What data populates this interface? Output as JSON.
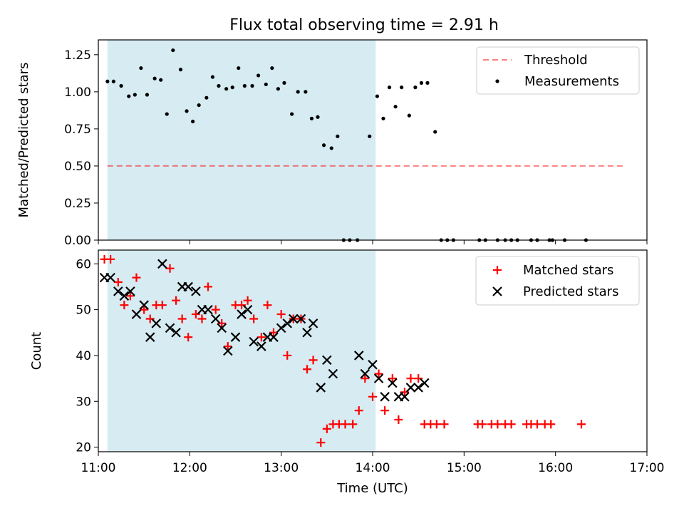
{
  "title": "Flux total observing time = 2.91 h",
  "chart_data": [
    {
      "type": "scatter",
      "ylabel": "Matched/Predicted stars",
      "xlabel": "",
      "xlim": [
        "11:00",
        "17:00"
      ],
      "ylim": [
        0,
        1.35
      ],
      "yticks": [
        "0.00",
        "0.25",
        "0.50",
        "0.75",
        "1.00",
        "1.25"
      ],
      "highlight_span": [
        "11:06",
        "14:02"
      ],
      "threshold": 0.5,
      "legend_position": "top-right",
      "legend": [
        "Threshold",
        "Measurements"
      ],
      "series": [
        {
          "name": "Measurements",
          "color": "#000000",
          "points": [
            [
              "11:06",
              1.07
            ],
            [
              "11:10",
              1.07
            ],
            [
              "11:15",
              1.04
            ],
            [
              "11:20",
              0.97
            ],
            [
              "11:24",
              0.98
            ],
            [
              "11:28",
              1.16
            ],
            [
              "11:32",
              0.98
            ],
            [
              "11:37",
              1.09
            ],
            [
              "11:41",
              1.08
            ],
            [
              "11:45",
              0.85
            ],
            [
              "11:49",
              1.28
            ],
            [
              "11:54",
              1.15
            ],
            [
              "11:58",
              0.87
            ],
            [
              "12:02",
              0.8
            ],
            [
              "12:06",
              0.91
            ],
            [
              "12:11",
              0.96
            ],
            [
              "12:15",
              1.1
            ],
            [
              "12:19",
              1.04
            ],
            [
              "12:24",
              1.02
            ],
            [
              "12:28",
              1.03
            ],
            [
              "12:32",
              1.16
            ],
            [
              "12:36",
              1.04
            ],
            [
              "12:41",
              1.04
            ],
            [
              "12:45",
              1.11
            ],
            [
              "12:50",
              1.05
            ],
            [
              "12:54",
              1.16
            ],
            [
              "12:58",
              1.02
            ],
            [
              "13:02",
              1.06
            ],
            [
              "13:07",
              0.85
            ],
            [
              "13:11",
              1.0
            ],
            [
              "13:16",
              1.0
            ],
            [
              "13:20",
              0.82
            ],
            [
              "13:24",
              0.83
            ],
            [
              "13:28",
              0.64
            ],
            [
              "13:33",
              0.62
            ],
            [
              "13:37",
              0.7
            ],
            [
              "13:41",
              0.0
            ],
            [
              "13:45",
              0.0
            ],
            [
              "13:50",
              0.0
            ],
            [
              "13:58",
              0.7
            ],
            [
              "14:03",
              0.97
            ],
            [
              "14:07",
              0.82
            ],
            [
              "14:11",
              1.03
            ],
            [
              "14:15",
              0.9
            ],
            [
              "14:19",
              1.03
            ],
            [
              "14:24",
              0.84
            ],
            [
              "14:28",
              1.03
            ],
            [
              "14:32",
              1.06
            ],
            [
              "14:36",
              1.06
            ],
            [
              "14:41",
              0.73
            ],
            [
              "14:45",
              0.0
            ],
            [
              "14:49",
              0.0
            ],
            [
              "14:53",
              0.0
            ],
            [
              "15:10",
              0.0
            ],
            [
              "15:14",
              0.0
            ],
            [
              "15:22",
              0.0
            ],
            [
              "15:27",
              0.0
            ],
            [
              "15:31",
              0.0
            ],
            [
              "15:35",
              0.0
            ],
            [
              "15:44",
              0.0
            ],
            [
              "15:48",
              0.0
            ],
            [
              "15:56",
              0.0
            ],
            [
              "15:58",
              0.0
            ],
            [
              "16:06",
              0.0
            ],
            [
              "16:20",
              0.0
            ]
          ]
        }
      ]
    },
    {
      "type": "scatter",
      "ylabel": "Count",
      "xlabel": "Time (UTC)",
      "xlim": [
        "11:00",
        "17:00"
      ],
      "ylim": [
        19,
        63
      ],
      "yticks": [
        "20",
        "30",
        "40",
        "50",
        "60"
      ],
      "xticks": [
        "11:00",
        "12:00",
        "13:00",
        "14:00",
        "15:00",
        "16:00",
        "17:00"
      ],
      "highlight_span": [
        "11:06",
        "14:02"
      ],
      "legend_position": "top-right",
      "legend": [
        "Matched stars",
        "Predicted stars"
      ],
      "series": [
        {
          "name": "Matched stars",
          "color": "#ff0000",
          "points": [
            [
              "11:04",
              61
            ],
            [
              "11:08",
              61
            ],
            [
              "11:13",
              56
            ],
            [
              "11:17",
              51
            ],
            [
              "11:21",
              53
            ],
            [
              "11:25",
              57
            ],
            [
              "11:30",
              50
            ],
            [
              "11:34",
              48
            ],
            [
              "11:38",
              51
            ],
            [
              "11:42",
              51
            ],
            [
              "11:47",
              59
            ],
            [
              "11:51",
              52
            ],
            [
              "11:55",
              48
            ],
            [
              "11:59",
              44
            ],
            [
              "12:04",
              49
            ],
            [
              "12:08",
              48
            ],
            [
              "12:12",
              55
            ],
            [
              "12:17",
              50
            ],
            [
              "12:21",
              47
            ],
            [
              "12:25",
              42
            ],
            [
              "12:30",
              51
            ],
            [
              "12:34",
              51
            ],
            [
              "12:38",
              52
            ],
            [
              "12:42",
              48
            ],
            [
              "12:47",
              44
            ],
            [
              "12:51",
              51
            ],
            [
              "12:55",
              45
            ],
            [
              "13:00",
              49
            ],
            [
              "13:04",
              40
            ],
            [
              "13:08",
              48
            ],
            [
              "13:13",
              48
            ],
            [
              "13:17",
              37
            ],
            [
              "13:21",
              39
            ],
            [
              "13:26",
              21
            ],
            [
              "13:30",
              24
            ],
            [
              "13:34",
              25
            ],
            [
              "13:38",
              25
            ],
            [
              "13:42",
              25
            ],
            [
              "13:47",
              25
            ],
            [
              "13:51",
              28
            ],
            [
              "13:55",
              35
            ],
            [
              "14:00",
              31
            ],
            [
              "14:04",
              36
            ],
            [
              "14:08",
              28
            ],
            [
              "14:13",
              35
            ],
            [
              "14:17",
              26
            ],
            [
              "14:21",
              32
            ],
            [
              "14:25",
              35
            ],
            [
              "14:30",
              35
            ],
            [
              "14:34",
              25
            ],
            [
              "14:38",
              25
            ],
            [
              "14:42",
              25
            ],
            [
              "14:47",
              25
            ],
            [
              "15:09",
              25
            ],
            [
              "15:12",
              25
            ],
            [
              "15:18",
              25
            ],
            [
              "15:22",
              25
            ],
            [
              "15:27",
              25
            ],
            [
              "15:31",
              25
            ],
            [
              "15:41",
              25
            ],
            [
              "15:44",
              25
            ],
            [
              "15:48",
              25
            ],
            [
              "15:53",
              25
            ],
            [
              "15:57",
              25
            ],
            [
              "16:17",
              25
            ]
          ]
        },
        {
          "name": "Predicted stars",
          "color": "#000000",
          "points": [
            [
              "11:04",
              57
            ],
            [
              "11:08",
              57
            ],
            [
              "11:13",
              54
            ],
            [
              "11:17",
              53
            ],
            [
              "11:21",
              54
            ],
            [
              "11:25",
              49
            ],
            [
              "11:30",
              51
            ],
            [
              "11:34",
              44
            ],
            [
              "11:38",
              47
            ],
            [
              "11:42",
              60
            ],
            [
              "11:47",
              46
            ],
            [
              "11:51",
              45
            ],
            [
              "11:55",
              55
            ],
            [
              "11:59",
              55
            ],
            [
              "12:04",
              54
            ],
            [
              "12:08",
              50
            ],
            [
              "12:12",
              50
            ],
            [
              "12:17",
              48
            ],
            [
              "12:21",
              46
            ],
            [
              "12:25",
              41
            ],
            [
              "12:30",
              44
            ],
            [
              "12:34",
              49
            ],
            [
              "12:38",
              50
            ],
            [
              "12:42",
              43
            ],
            [
              "12:47",
              42
            ],
            [
              "12:51",
              44
            ],
            [
              "12:55",
              44
            ],
            [
              "13:00",
              46
            ],
            [
              "13:04",
              47
            ],
            [
              "13:08",
              48
            ],
            [
              "13:13",
              48
            ],
            [
              "13:17",
              45
            ],
            [
              "13:21",
              47
            ],
            [
              "13:26",
              33
            ],
            [
              "13:30",
              39
            ],
            [
              "13:34",
              36
            ],
            [
              "13:51",
              40
            ],
            [
              "13:55",
              36
            ],
            [
              "14:00",
              38
            ],
            [
              "14:04",
              35
            ],
            [
              "14:08",
              31
            ],
            [
              "14:13",
              34
            ],
            [
              "14:17",
              31
            ],
            [
              "14:21",
              31
            ],
            [
              "14:25",
              33
            ],
            [
              "14:30",
              33
            ],
            [
              "14:34",
              34
            ]
          ]
        }
      ]
    }
  ]
}
